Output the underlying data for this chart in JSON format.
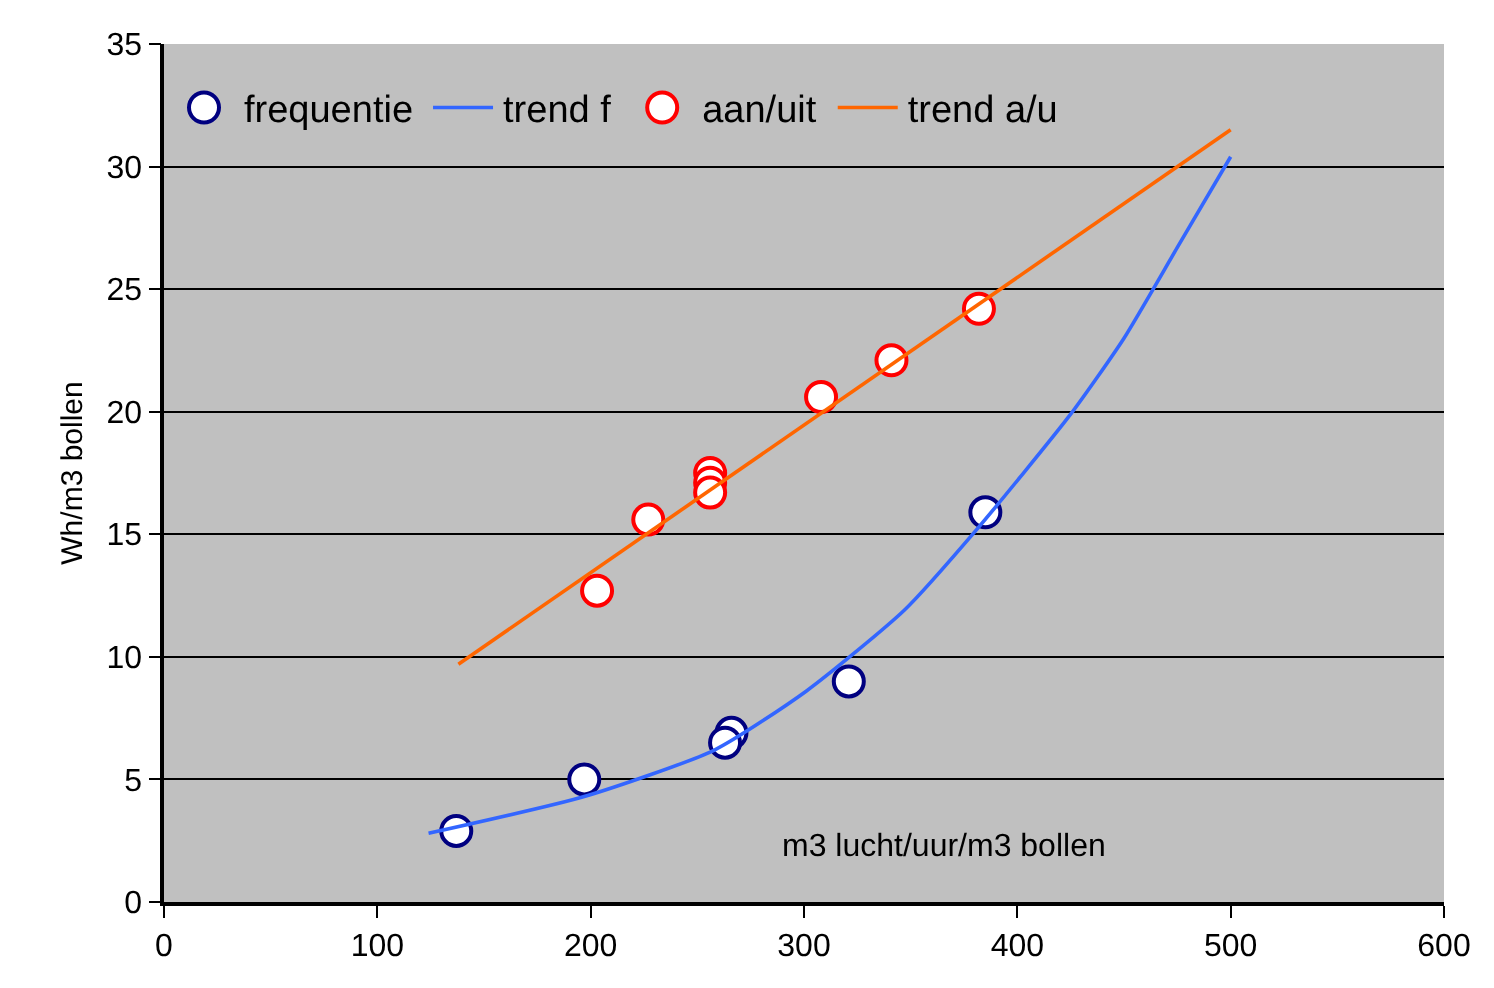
{
  "chart_data": {
    "type": "scatter",
    "xlabel": "m3 lucht/uur/m3 bollen",
    "ylabel": "Wh/m3 bollen",
    "xlim": [
      0,
      600
    ],
    "xticks": [
      0,
      100,
      200,
      300,
      400,
      500,
      600
    ],
    "ylim": [
      0,
      35
    ],
    "yticks": [
      0,
      5,
      10,
      15,
      20,
      25,
      30,
      35
    ],
    "grid": "y",
    "legend": "top",
    "series": [
      {
        "name": "frequentie",
        "marker": "circle",
        "color": "#000080",
        "x": [
          137,
          197,
          266,
          263,
          321,
          385
        ],
        "values": [
          2.9,
          5.0,
          6.9,
          6.5,
          9.0,
          15.9
        ]
      },
      {
        "name": "trend f",
        "type": "line",
        "color": "#3366ff",
        "x": [
          124,
          197,
          258,
          301,
          347,
          381,
          425,
          450,
          475,
          500
        ],
        "values": [
          2.8,
          4.3,
          6.2,
          8.6,
          11.9,
          15.2,
          19.9,
          23.0,
          26.7,
          30.4
        ]
      },
      {
        "name": "aan/uit",
        "marker": "circle",
        "color": "#ff0000",
        "x": [
          203,
          227,
          256,
          256,
          256,
          308,
          341,
          382
        ],
        "values": [
          12.7,
          15.6,
          17.5,
          17.1,
          16.7,
          20.6,
          22.1,
          24.2
        ]
      },
      {
        "name": "trend a/u",
        "type": "line",
        "color": "#ff6600",
        "x": [
          138,
          500
        ],
        "values": [
          9.7,
          31.5
        ]
      }
    ]
  }
}
